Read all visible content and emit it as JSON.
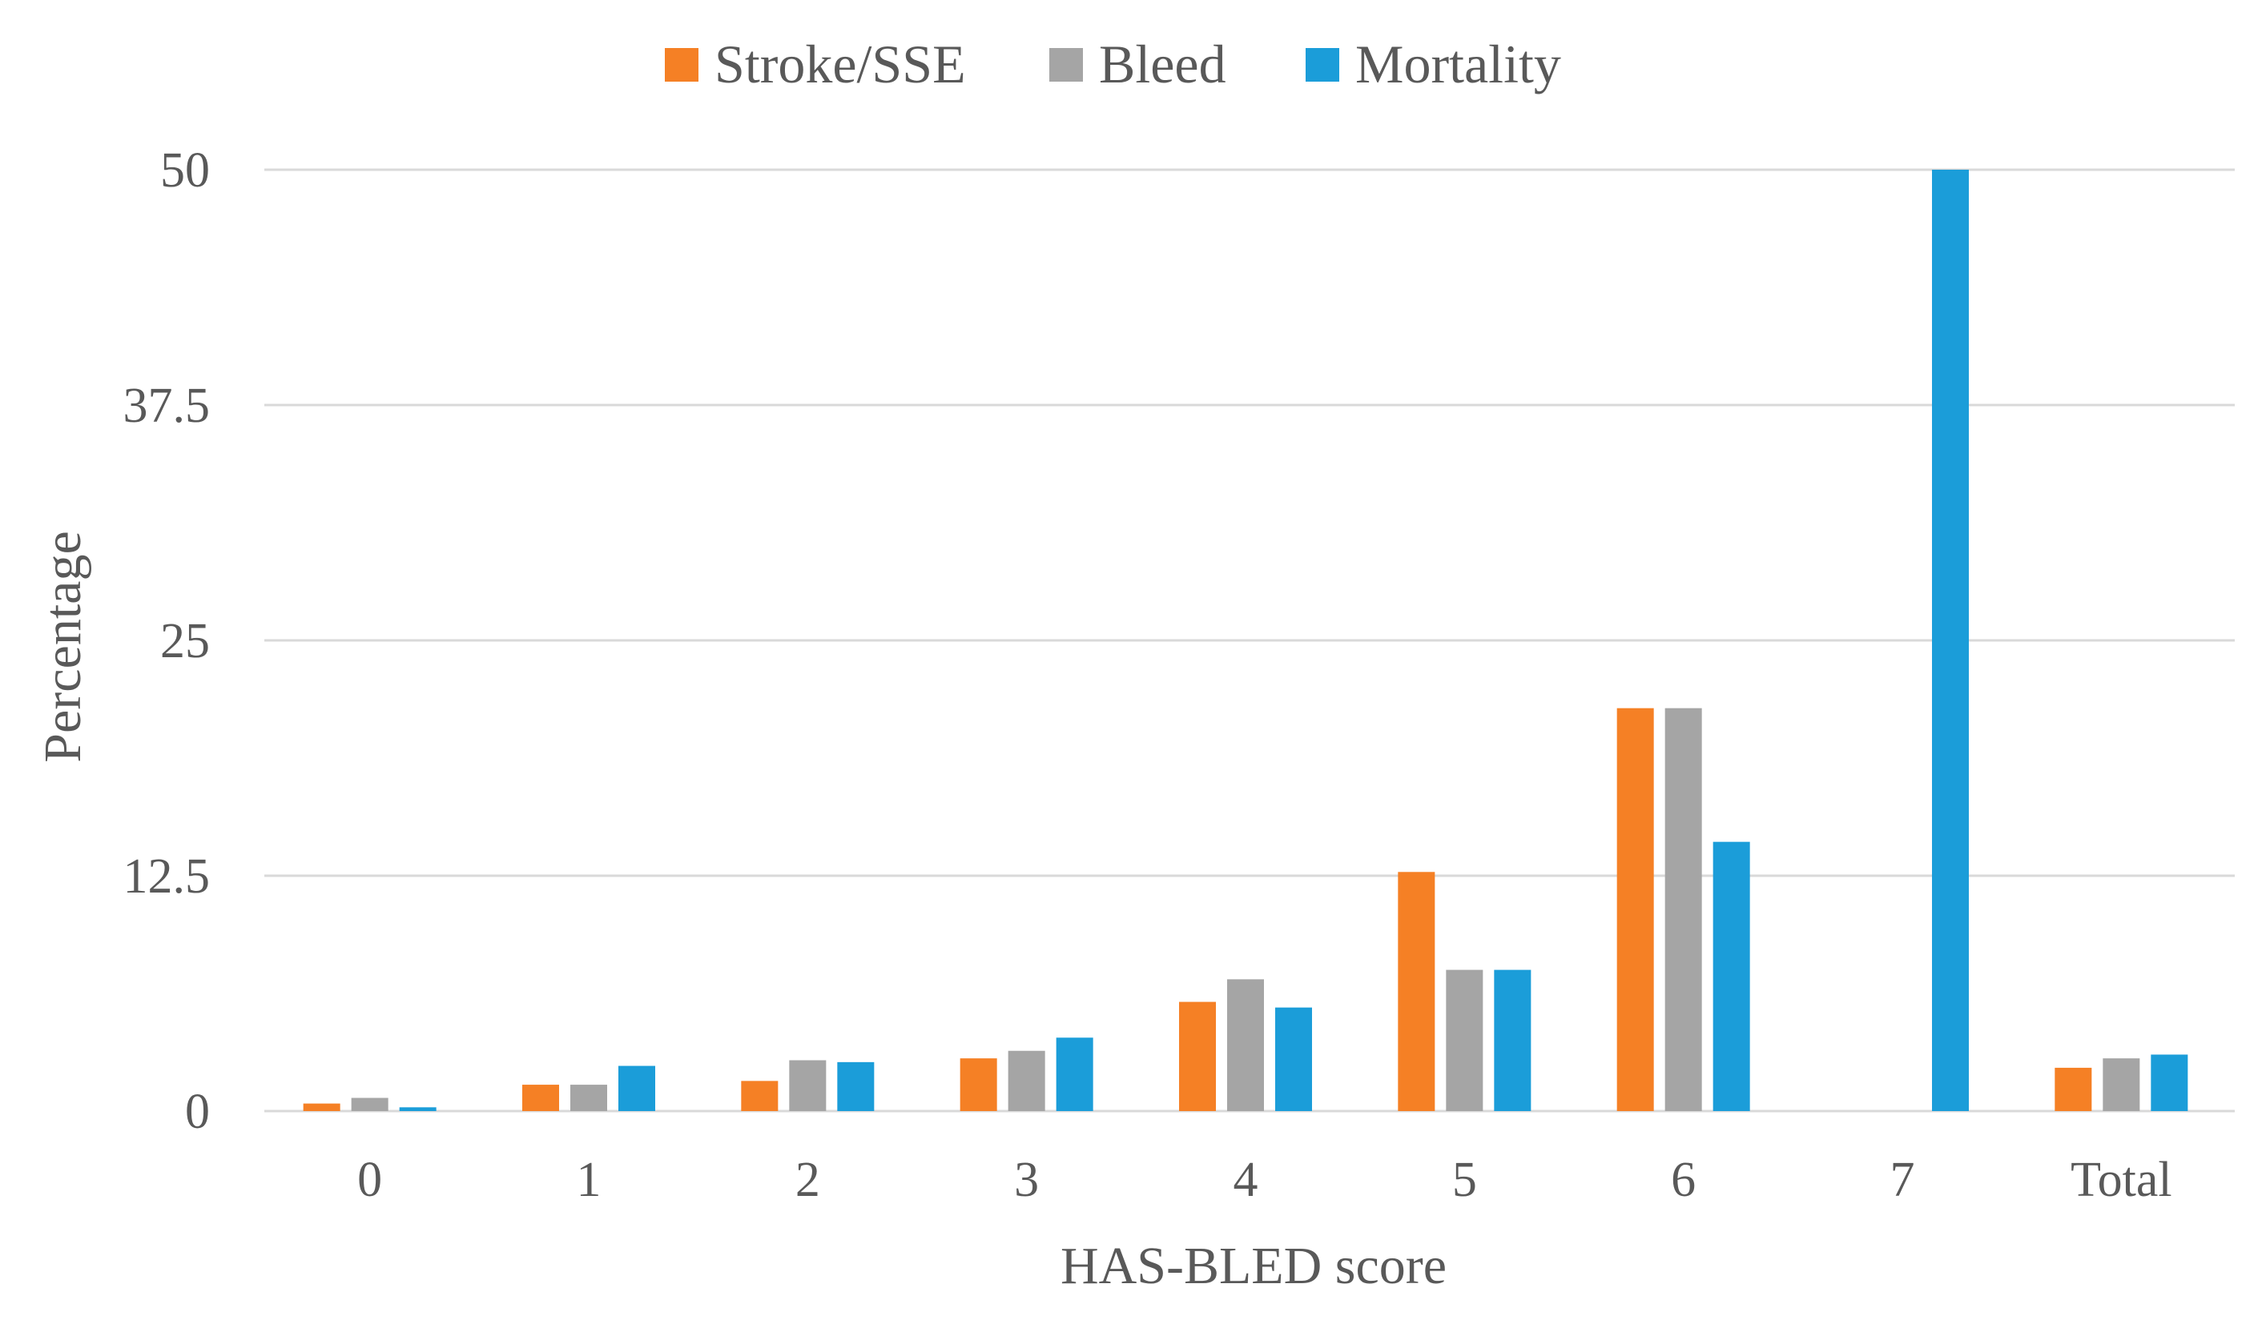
{
  "chart_data": {
    "type": "bar",
    "title": "",
    "xlabel": "HAS-BLED score",
    "ylabel": "Percentage",
    "ylim": [
      0,
      50
    ],
    "yticks": [
      "0",
      "12.5",
      "25",
      "37.5",
      "50"
    ],
    "grid": true,
    "legend_position": "top-center",
    "categories": [
      "0",
      "1",
      "2",
      "3",
      "4",
      "5",
      "6",
      "7",
      "Total"
    ],
    "series": [
      {
        "name": "Stroke/SSE",
        "color": "#f58025",
        "values": [
          0.4,
          1.4,
          1.6,
          2.8,
          5.8,
          12.7,
          21.4,
          0,
          2.3
        ]
      },
      {
        "name": "Bleed",
        "color": "#a5a5a5",
        "values": [
          0.7,
          1.4,
          2.7,
          3.2,
          7.0,
          7.5,
          21.4,
          0,
          2.8
        ]
      },
      {
        "name": "Mortality",
        "color": "#1b9dd9",
        "values": [
          0.2,
          2.4,
          2.6,
          3.9,
          5.5,
          7.5,
          14.3,
          50.0,
          3.0
        ]
      }
    ]
  }
}
